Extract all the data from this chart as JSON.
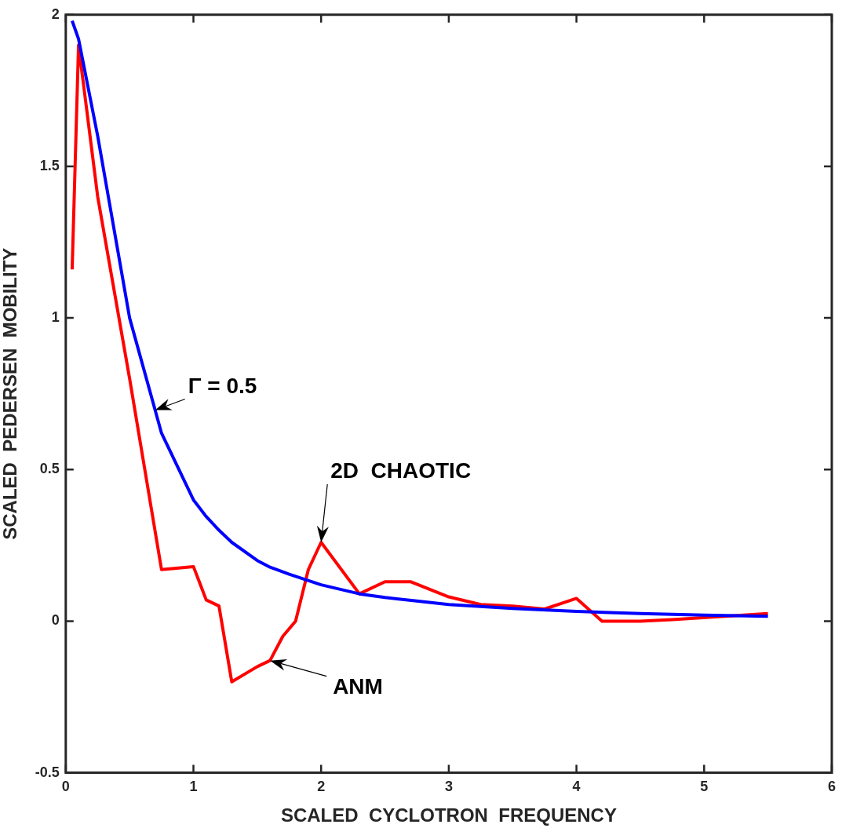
{
  "chart_data": {
    "type": "line",
    "xlabel": "SCALED  CYCLOTRON  FREQUENCY",
    "ylabel": "SCALED  PEDERSEN  MOBILITY",
    "xlim": [
      0,
      6
    ],
    "xticks": [
      0,
      1,
      2,
      3,
      4,
      5,
      6
    ],
    "ylim": [
      -0.5,
      2
    ],
    "yticks": [
      -0.5,
      0,
      0.5,
      1,
      1.5,
      2
    ],
    "grid": false,
    "legend": false,
    "marker": "none",
    "line_style": "solid",
    "series": [
      {
        "color": "#0000ff",
        "x": [
          0.05,
          0.1,
          0.25,
          0.5,
          0.75,
          1.0,
          1.1,
          1.2,
          1.3,
          1.5,
          1.6,
          1.75,
          2.0,
          2.3,
          2.5,
          3.0,
          3.5,
          4.0,
          4.5,
          5.0,
          5.5
        ],
        "values": [
          1.98,
          1.92,
          1.6,
          1.0,
          0.62,
          0.4,
          0.345,
          0.3,
          0.26,
          0.2,
          0.178,
          0.155,
          0.12,
          0.09,
          0.078,
          0.055,
          0.042,
          0.032,
          0.025,
          0.02,
          0.016
        ]
      },
      {
        "color": "#ff0000",
        "x": [
          0.05,
          0.1,
          0.25,
          0.5,
          0.75,
          1.0,
          1.1,
          1.2,
          1.3,
          1.5,
          1.6,
          1.7,
          1.8,
          1.9,
          2.0,
          2.3,
          2.5,
          2.7,
          3.0,
          3.25,
          3.5,
          3.75,
          4.0,
          4.2,
          4.5,
          4.75,
          5.5
        ],
        "values": [
          1.16,
          1.9,
          1.4,
          0.8,
          0.17,
          0.18,
          0.07,
          0.05,
          -0.2,
          -0.15,
          -0.13,
          -0.05,
          0,
          0.17,
          0.26,
          0.09,
          0.13,
          0.13,
          0.08,
          0.055,
          0.05,
          0.04,
          0.075,
          0,
          0,
          0.005,
          0.025
        ]
      }
    ],
    "annotations": [
      {
        "text": "Γ = 0.5",
        "x": 0.7,
        "y": 0.696
      },
      {
        "text": "2D  CHAOTIC",
        "x": 2.0,
        "y": 0.26
      },
      {
        "text": "ANM",
        "x": 1.6,
        "y": -0.13
      }
    ]
  }
}
